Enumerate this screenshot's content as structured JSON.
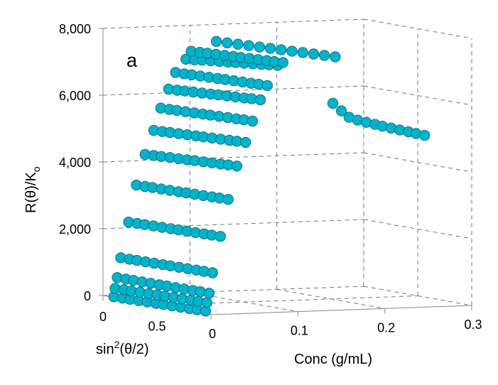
{
  "chart_data": {
    "type": "scatter",
    "projection": "3d",
    "panel_label": "a",
    "xlabel": "Conc (g/mL)",
    "ylabel": "sin2(θ/2)",
    "ylabel_main": "sin",
    "ylabel_sup": "2",
    "ylabel_rest": "(θ/2)",
    "zlabel": "R(θ)/Ko",
    "zlabel_main": "R(θ)/K",
    "zlabel_sub": "o",
    "xlim": [
      0,
      0.3
    ],
    "ylim": [
      0,
      1
    ],
    "zlim": [
      0,
      8000
    ],
    "x_ticks": [
      "0",
      "0.1",
      "0.2",
      "0.3"
    ],
    "y_ticks": [
      "0",
      "0.5"
    ],
    "z_ticks": [
      "0",
      "2,000",
      "4,000",
      "6,000",
      "8,000"
    ],
    "grid": true,
    "marker_color": "#00b4cc",
    "marker_edge": "#1d6f80",
    "sin2": [
      0.1,
      0.18,
      0.25,
      0.33,
      0.41,
      0.49,
      0.56,
      0.64,
      0.72,
      0.8,
      0.87,
      0.95
    ],
    "series": [
      {
        "conc": 0.0,
        "R": [
          20,
          25,
          31,
          36,
          42,
          47,
          53,
          58,
          64,
          69,
          75,
          80
        ]
      },
      {
        "conc": 0.0015,
        "R": [
          270,
          275,
          281,
          286,
          292,
          297,
          303,
          308,
          314,
          319,
          325,
          330
        ]
      },
      {
        "conc": 0.004,
        "R": [
          590,
          592,
          594,
          595,
          597,
          599,
          601,
          603,
          605,
          606,
          608,
          610
        ]
      },
      {
        "conc": 0.008,
        "R": [
          1180,
          1184,
          1187,
          1191,
          1195,
          1198,
          1202,
          1205,
          1209,
          1213,
          1216,
          1220
        ]
      },
      {
        "conc": 0.017,
        "R": [
          2240,
          2245,
          2251,
          2256,
          2262,
          2267,
          2273,
          2278,
          2284,
          2289,
          2295,
          2300
        ]
      },
      {
        "conc": 0.026,
        "R": [
          3340,
          3345,
          3351,
          3356,
          3362,
          3367,
          3373,
          3378,
          3384,
          3389,
          3395,
          3400
        ]
      },
      {
        "conc": 0.036,
        "R": [
          4250,
          4263,
          4275,
          4288,
          4301,
          4314,
          4326,
          4339,
          4352,
          4365,
          4377,
          4390
        ]
      },
      {
        "conc": 0.046,
        "R": [
          4960,
          4972,
          4984,
          4995,
          5007,
          5019,
          5031,
          5043,
          5055,
          5066,
          5078,
          5090
        ]
      },
      {
        "conc": 0.054,
        "R": [
          5620,
          5629,
          5638,
          5647,
          5656,
          5665,
          5675,
          5684,
          5693,
          5702,
          5711,
          5720
        ]
      },
      {
        "conc": 0.063,
        "R": [
          6180,
          6195,
          6211,
          6226,
          6242,
          6257,
          6273,
          6288,
          6304,
          6319,
          6335,
          6350
        ]
      },
      {
        "conc": 0.071,
        "R": [
          6670,
          6679,
          6688,
          6697,
          6706,
          6715,
          6725,
          6734,
          6743,
          6752,
          6761,
          6770
        ]
      },
      {
        "conc": 0.083,
        "R": [
          7060,
          7087,
          7115,
          7142,
          7169,
          7196,
          7224,
          7251,
          7278,
          7305,
          7333,
          7360
        ]
      },
      {
        "conc": 0.089,
        "R": [
          7290,
          7304,
          7317,
          7331,
          7345,
          7358,
          7372,
          7386,
          7399,
          7413,
          7427,
          7440
        ]
      },
      {
        "conc": 0.118,
        "sin2": [
          0.1,
          0.2,
          0.3,
          0.4,
          0.5,
          0.6,
          0.7,
          0.8,
          0.9,
          1.0,
          1.1,
          1.2
        ],
        "R": [
          7560,
          7575,
          7591,
          7606,
          7622,
          7637,
          7653,
          7668,
          7684,
          7699,
          7715,
          7730
        ]
      },
      {
        "conc": 0.252,
        "R": [
          5580,
          5400,
          5250,
          5210,
          5190,
          5175,
          5160,
          5150,
          5140,
          5130,
          5120,
          5110
        ]
      }
    ]
  }
}
